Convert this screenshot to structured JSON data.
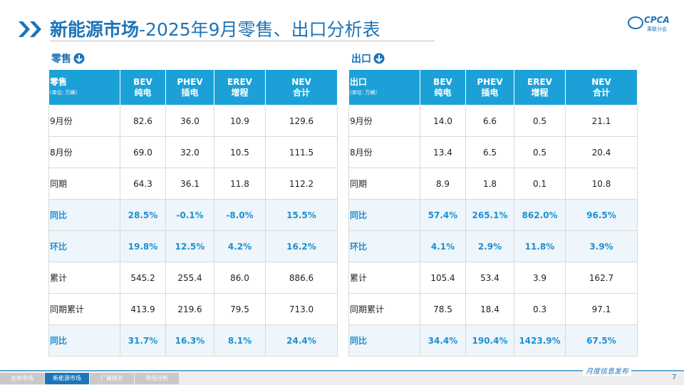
{
  "header": {
    "title_main": "新能源市场",
    "title_rest": "-2025年9月零售、出口分析表",
    "logo_text": "CPCA",
    "logo_sub": "乘联分会"
  },
  "sections": [
    {
      "label": "零售",
      "table": {
        "corner": "零售",
        "unit": "(单位: 万辆)",
        "columns": [
          {
            "code": "BEV",
            "name": "纯电"
          },
          {
            "code": "PHEV",
            "name": "插电"
          },
          {
            "code": "EREV",
            "name": "增程"
          },
          {
            "code": "NEV",
            "name": "合计"
          }
        ],
        "rows": [
          {
            "label": "9月份",
            "values": [
              "82.6",
              "36.0",
              "10.9",
              "129.6"
            ]
          },
          {
            "label": "8月份",
            "values": [
              "69.0",
              "32.0",
              "10.5",
              "111.5"
            ]
          },
          {
            "label": "同期",
            "values": [
              "64.3",
              "36.1",
              "11.8",
              "112.2"
            ]
          },
          {
            "label": "同比",
            "values": [
              "28.5%",
              "-0.1%",
              "-8.0%",
              "15.5%"
            ],
            "highlight": true
          },
          {
            "label": "环比",
            "values": [
              "19.8%",
              "12.5%",
              "4.2%",
              "16.2%"
            ],
            "highlight": true
          },
          {
            "label": "累计",
            "values": [
              "545.2",
              "255.4",
              "86.0",
              "886.6"
            ]
          },
          {
            "label": "同期累计",
            "values": [
              "413.9",
              "219.6",
              "79.5",
              "713.0"
            ]
          },
          {
            "label": "同比",
            "values": [
              "31.7%",
              "16.3%",
              "8.1%",
              "24.4%"
            ],
            "highlight": true
          }
        ]
      }
    },
    {
      "label": "出口",
      "table": {
        "corner": "出口",
        "unit": "(单位: 万辆)",
        "columns": [
          {
            "code": "BEV",
            "name": "纯电"
          },
          {
            "code": "PHEV",
            "name": "插电"
          },
          {
            "code": "EREV",
            "name": "增程"
          },
          {
            "code": "NEV",
            "name": "合计"
          }
        ],
        "rows": [
          {
            "label": "9月份",
            "values": [
              "14.0",
              "6.6",
              "0.5",
              "21.1"
            ]
          },
          {
            "label": "8月份",
            "values": [
              "13.4",
              "6.5",
              "0.5",
              "20.4"
            ]
          },
          {
            "label": "同期",
            "values": [
              "8.9",
              "1.8",
              "0.1",
              "10.8"
            ]
          },
          {
            "label": "同比",
            "values": [
              "57.4%",
              "265.1%",
              "862.0%",
              "96.5%"
            ],
            "highlight": true
          },
          {
            "label": "环比",
            "values": [
              "4.1%",
              "2.9%",
              "11.8%",
              "3.9%"
            ],
            "highlight": true
          },
          {
            "label": "累计",
            "values": [
              "105.4",
              "53.4",
              "3.9",
              "162.7"
            ]
          },
          {
            "label": "同期累计",
            "values": [
              "78.5",
              "18.4",
              "0.3",
              "97.1"
            ]
          },
          {
            "label": "同比",
            "values": [
              "34.4%",
              "190.4%",
              "1423.9%",
              "67.5%"
            ],
            "highlight": true
          }
        ]
      }
    }
  ],
  "footer": {
    "tabs": [
      "总体市场",
      "新能源市场",
      "厂商排名",
      "市场分析"
    ],
    "active_tab": 1,
    "note": "月度信息发布",
    "page": "7"
  }
}
